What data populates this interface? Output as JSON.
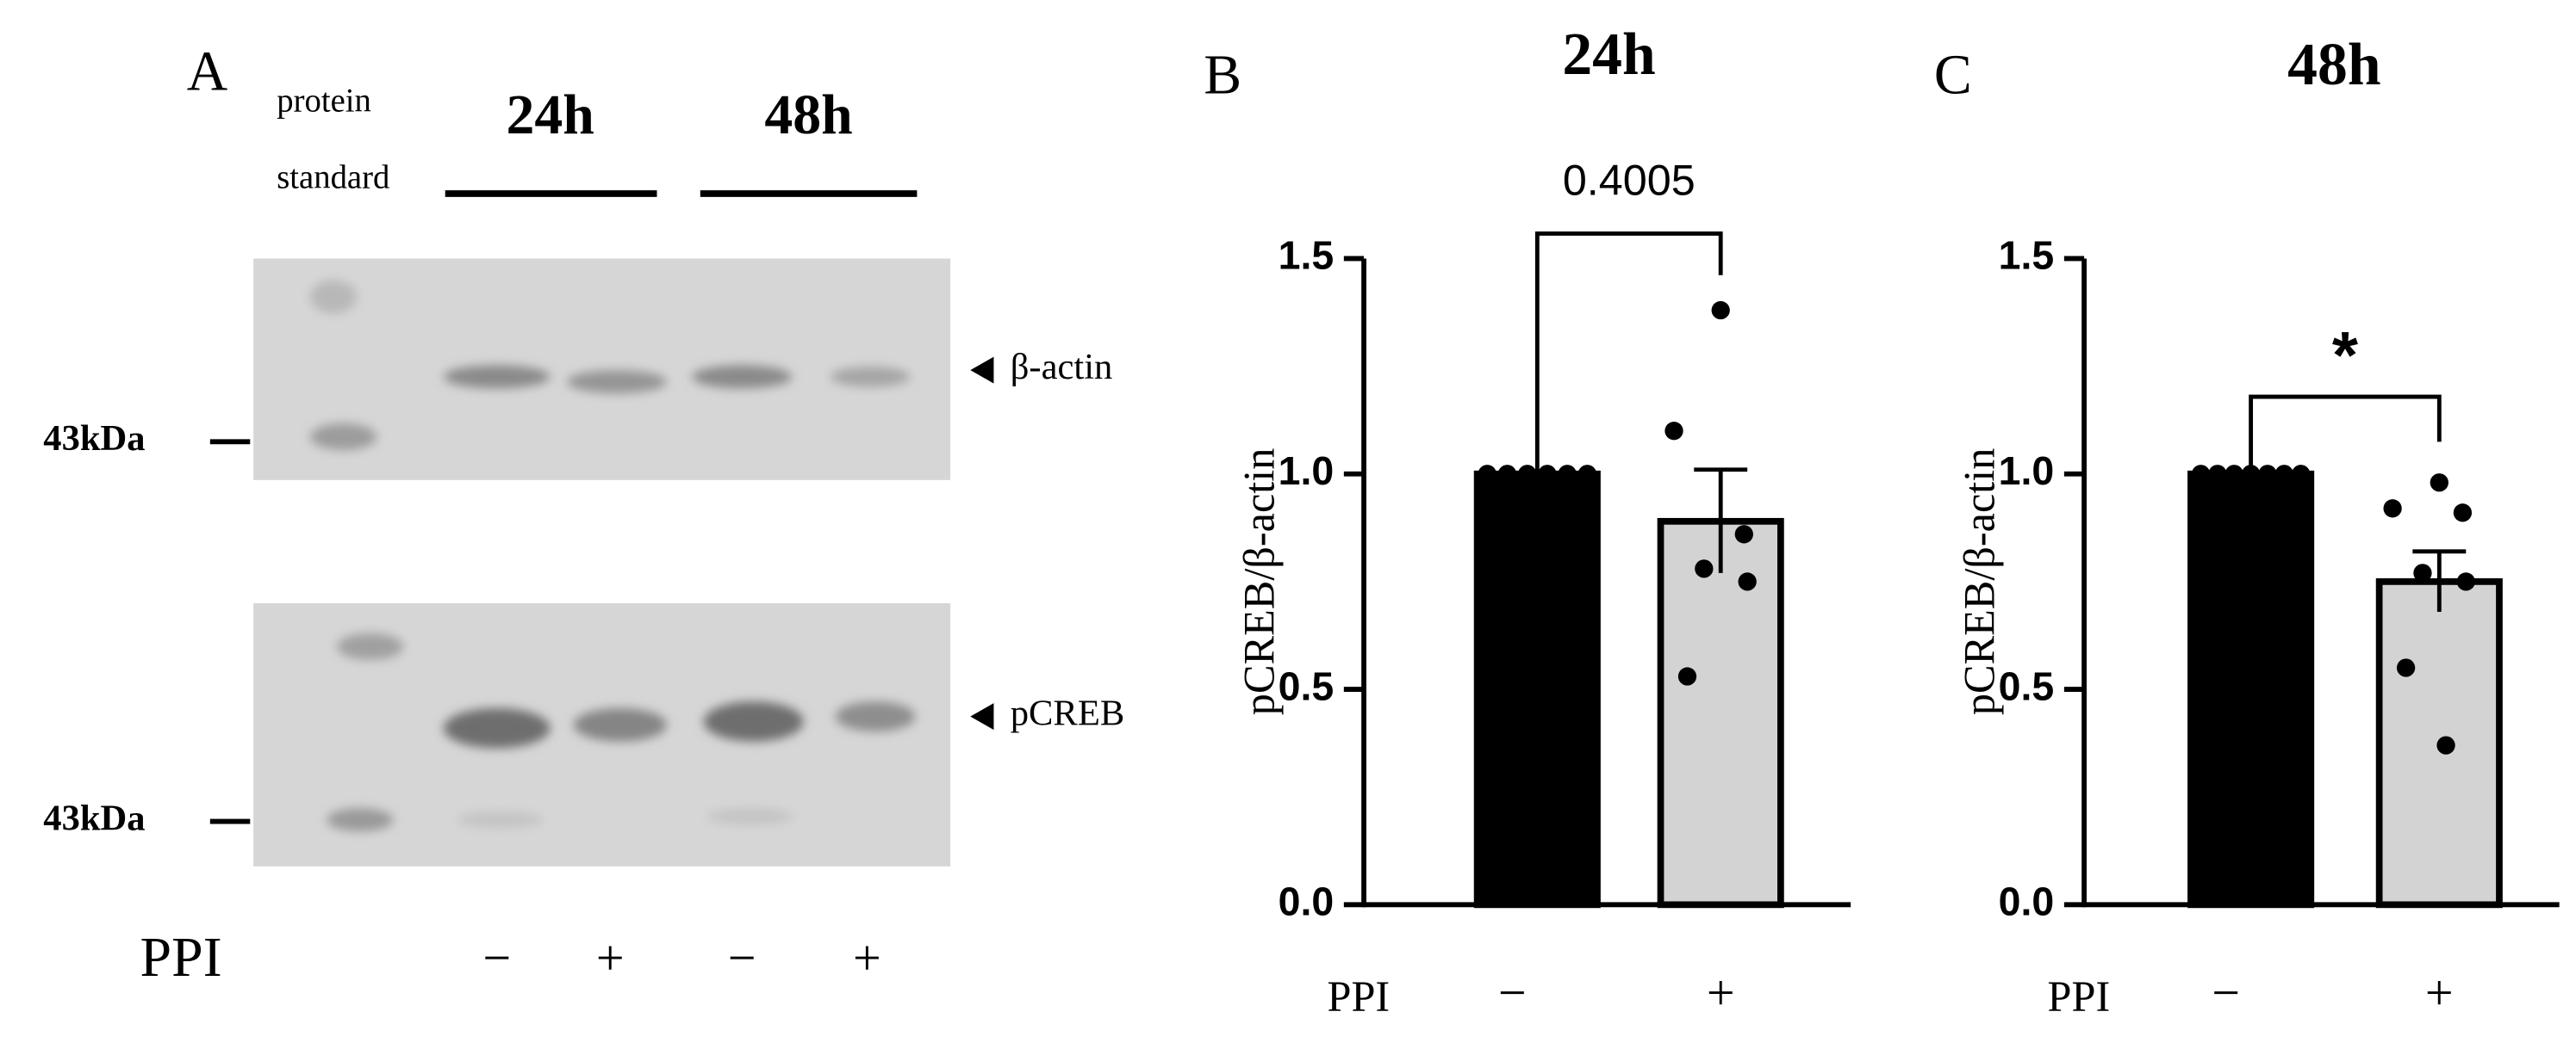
{
  "blot": {
    "panel_label": "A",
    "standard_label": [
      "protein",
      "standard"
    ],
    "groups": [
      "24h",
      "48h"
    ],
    "bands": [
      "β-actin",
      "pCREB"
    ],
    "marker": "43kDa",
    "row_label": "PPI",
    "lanes": [
      "−",
      "+",
      "−",
      "+"
    ]
  },
  "chart_data": [
    {
      "type": "bar",
      "panel_label": "B",
      "title": "24h",
      "y_label": "pCREB/β-actin",
      "x_label": "PPI",
      "categories": [
        "−",
        "+"
      ],
      "values": [
        1.0,
        0.89
      ],
      "errors": [
        0,
        0.12
      ],
      "colors": [
        "#000000",
        "#d3d3d3"
      ],
      "points": [
        [
          1.0,
          1.0,
          1.0,
          1.0,
          1.0,
          1.0
        ],
        [
          1.38,
          1.1,
          0.86,
          0.78,
          0.75,
          0.53
        ]
      ],
      "annotation": "0.4005",
      "ylim": [
        0,
        1.5
      ],
      "yticks": [
        {
          "value": 0,
          "label": "0.0"
        },
        0.5,
        {
          "value": 1,
          "label": "1.0"
        },
        1.5
      ]
    },
    {
      "type": "bar",
      "panel_label": "C",
      "title": "48h",
      "y_label": "pCREB/β-actin",
      "x_label": "PPI",
      "categories": [
        "−",
        "+"
      ],
      "values": [
        1.0,
        0.75
      ],
      "errors": [
        0,
        0.07
      ],
      "colors": [
        "#000000",
        "#d3d3d3"
      ],
      "points": [
        [
          1.0,
          1.0,
          1.0,
          1.0,
          1.0,
          1.0,
          1.0
        ],
        [
          0.98,
          0.92,
          0.91,
          0.77,
          0.75,
          0.55,
          0.37
        ]
      ],
      "annotation": "*",
      "ylim": [
        0,
        1.5
      ],
      "yticks": [
        {
          "value": 0,
          "label": "0.0"
        },
        0.5,
        {
          "value": 1,
          "label": "1.0"
        },
        1.5
      ]
    }
  ]
}
